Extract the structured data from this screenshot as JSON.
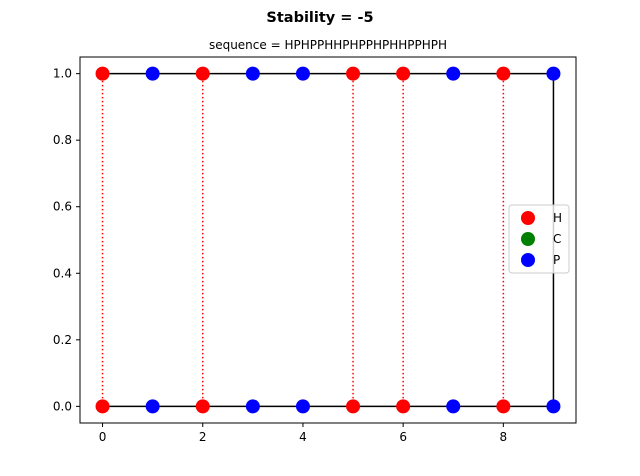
{
  "chart_data": {
    "type": "scatter",
    "title": "Stability = -5",
    "subtitle": "sequence = HPHPPHHPHPPHPHHPPHPH",
    "xlabel": "",
    "ylabel": "",
    "xlim": [
      -0.45,
      9.45
    ],
    "ylim": [
      -0.05,
      1.05
    ],
    "xticks": [
      0,
      2,
      4,
      6,
      8
    ],
    "xtick_labels": [
      "0",
      "2",
      "4",
      "6",
      "8"
    ],
    "yticks": [
      0.0,
      0.2,
      0.4,
      0.6,
      0.8,
      1.0
    ],
    "ytick_labels": [
      "0.0",
      "0.2",
      "0.4",
      "0.6",
      "0.8",
      "1.0"
    ],
    "grid": false,
    "legend_position": "center-right",
    "series": [
      {
        "name": "H",
        "color": "#ff0000",
        "points": [
          [
            0,
            1
          ],
          [
            2,
            1
          ],
          [
            5,
            1
          ],
          [
            6,
            1
          ],
          [
            8,
            1
          ],
          [
            0,
            0
          ],
          [
            2,
            0
          ],
          [
            5,
            0
          ],
          [
            6,
            0
          ],
          [
            8,
            0
          ]
        ]
      },
      {
        "name": "C",
        "color": "#008000",
        "points": []
      },
      {
        "name": "P",
        "color": "#0000ff",
        "points": [
          [
            1,
            1
          ],
          [
            3,
            1
          ],
          [
            4,
            1
          ],
          [
            7,
            1
          ],
          [
            9,
            1
          ],
          [
            1,
            0
          ],
          [
            3,
            0
          ],
          [
            4,
            0
          ],
          [
            7,
            0
          ],
          [
            9,
            0
          ]
        ]
      }
    ],
    "chain_path": [
      [
        0,
        1
      ],
      [
        1,
        1
      ],
      [
        2,
        1
      ],
      [
        3,
        1
      ],
      [
        4,
        1
      ],
      [
        5,
        1
      ],
      [
        6,
        1
      ],
      [
        7,
        1
      ],
      [
        8,
        1
      ],
      [
        9,
        1
      ],
      [
        9,
        0
      ],
      [
        8,
        0
      ],
      [
        7,
        0
      ],
      [
        6,
        0
      ],
      [
        5,
        0
      ],
      [
        4,
        0
      ],
      [
        3,
        0
      ],
      [
        2,
        0
      ],
      [
        1,
        0
      ],
      [
        0,
        0
      ]
    ],
    "chain_color": "#000000",
    "contacts": [
      [
        [
          0,
          0
        ],
        [
          0,
          1
        ]
      ],
      [
        [
          2,
          0
        ],
        [
          2,
          1
        ]
      ],
      [
        [
          5,
          0
        ],
        [
          5,
          1
        ]
      ],
      [
        [
          6,
          0
        ],
        [
          6,
          1
        ]
      ],
      [
        [
          8,
          0
        ],
        [
          8,
          1
        ]
      ]
    ],
    "contact_color": "#ff0000",
    "contact_style": "dotted"
  }
}
